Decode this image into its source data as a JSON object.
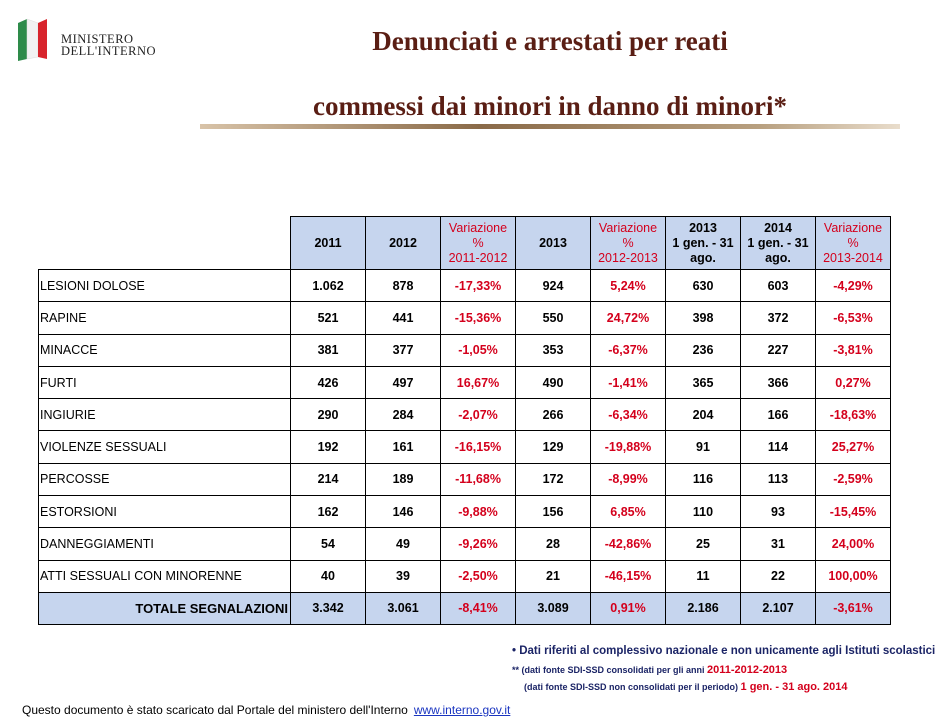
{
  "logo": {
    "line1": "MINISTERO",
    "line2": "DELL'INTERNO"
  },
  "title": {
    "line1": "Denunciati  e arrestati per reati",
    "line2": "commessi dai minori in danno di minori*"
  },
  "table": {
    "headers": [
      [
        "2011"
      ],
      [
        "2012"
      ],
      [
        "Variazione",
        "%",
        "2011-2012"
      ],
      [
        "2013"
      ],
      [
        "Variazione",
        "%",
        "2012-2013"
      ],
      [
        "2013",
        "1 gen. - 31",
        "ago."
      ],
      [
        "2014",
        "1 gen. - 31",
        "ago."
      ],
      [
        "Variazione",
        "%",
        "2013-2014"
      ]
    ],
    "rows": [
      [
        "LESIONI DOLOSE",
        "1.062",
        "878",
        "-17,33%",
        "924",
        "5,24%",
        "630",
        "603",
        "-4,29%"
      ],
      [
        "RAPINE",
        "521",
        "441",
        "-15,36%",
        "550",
        "24,72%",
        "398",
        "372",
        "-6,53%"
      ],
      [
        "MINACCE",
        "381",
        "377",
        "-1,05%",
        "353",
        "-6,37%",
        "236",
        "227",
        "-3,81%"
      ],
      [
        "FURTI",
        "426",
        "497",
        "16,67%",
        "490",
        "-1,41%",
        "365",
        "366",
        "0,27%"
      ],
      [
        "INGIURIE",
        "290",
        "284",
        "-2,07%",
        "266",
        "-6,34%",
        "204",
        "166",
        "-18,63%"
      ],
      [
        "VIOLENZE SESSUALI",
        "192",
        "161",
        "-16,15%",
        "129",
        "-19,88%",
        "91",
        "114",
        "25,27%"
      ],
      [
        "PERCOSSE",
        "214",
        "189",
        "-11,68%",
        "172",
        "-8,99%",
        "116",
        "113",
        "-2,59%"
      ],
      [
        "ESTORSIONI",
        "162",
        "146",
        "-9,88%",
        "156",
        "6,85%",
        "110",
        "93",
        "-15,45%"
      ],
      [
        "DANNEGGIAMENTI",
        "54",
        "49",
        "-9,26%",
        "28",
        "-42,86%",
        "25",
        "31",
        "24,00%"
      ],
      [
        "ATTI SESSUALI CON MINORENNE",
        "40",
        "39",
        "-2,50%",
        "21",
        "-46,15%",
        "11",
        "22",
        "100,00%"
      ]
    ],
    "total": [
      "TOTALE SEGNALAZIONI",
      "3.342",
      "3.061",
      "-8,41%",
      "3.089",
      "0,91%",
      "2.186",
      "2.107",
      "-3,61%"
    ]
  },
  "notes": {
    "n1": "• Dati riferiti al complessivo nazionale e non unicamente agli Istituti scolastici",
    "n2a": "** (dati fonte SDI-SSD consolidati per gli anni ",
    "n2b": "2011-2012-2013",
    "n3a": "(dati fonte SDI-SSD non consolidati per il periodo) ",
    "n3b": "1 gen. - 31 ago. 2014"
  },
  "footer": {
    "text": "Questo documento è stato scaricato dal Portale del ministero dell'Interno",
    "link": "www.interno.gov.it"
  }
}
